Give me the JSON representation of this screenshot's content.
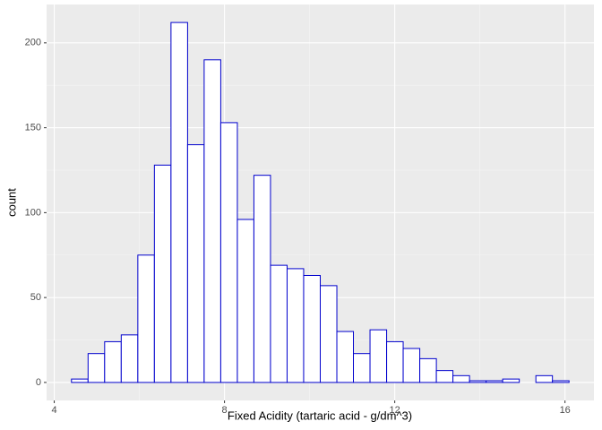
{
  "chart_data": {
    "type": "histogram",
    "x_label": "Fixed Acidity (tartaric acid - g/dm^3)",
    "y_label": "count",
    "bins": [
      4.405,
      4.795,
      5.184,
      5.574,
      5.964,
      6.353,
      6.743,
      7.133,
      7.522,
      7.912,
      8.302,
      8.691,
      9.081,
      9.471,
      9.86,
      10.25,
      10.64,
      11.029,
      11.419,
      11.809,
      12.198,
      12.588,
      12.978,
      13.367,
      13.757,
      14.147,
      14.536,
      14.926,
      15.316,
      15.705,
      16.095
    ],
    "values": [
      2,
      17,
      24,
      28,
      75,
      128,
      212,
      140,
      190,
      153,
      96,
      122,
      69,
      67,
      63,
      57,
      30,
      17,
      31,
      24,
      20,
      14,
      7,
      4,
      1,
      1,
      2,
      0,
      4,
      1
    ],
    "color": "#0000cd",
    "fill": "#ffffff",
    "xlim": [
      3.82,
      16.68
    ],
    "ylim": [
      -10.6,
      222.6
    ],
    "xticks": [
      4,
      8,
      12,
      16
    ],
    "yticks": [
      0,
      50,
      100,
      150,
      200
    ],
    "x_minor_grid": [
      6,
      10,
      14
    ],
    "y_minor_grid": [
      25,
      75,
      125,
      175
    ],
    "grid": true
  }
}
